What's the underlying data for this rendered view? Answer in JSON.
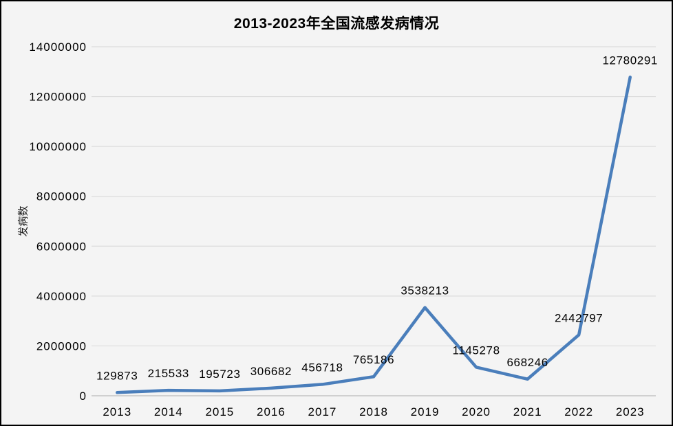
{
  "chart_data": {
    "type": "line",
    "title": "2013-2023年全国流感发病情况",
    "ylabel": "发病数",
    "xlabel": "",
    "categories": [
      "2013",
      "2014",
      "2015",
      "2016",
      "2017",
      "2018",
      "2019",
      "2020",
      "2021",
      "2022",
      "2023"
    ],
    "series": [
      {
        "name": "发病数",
        "values": [
          129873,
          215533,
          195723,
          306682,
          456718,
          765186,
          3538213,
          1145278,
          668246,
          2442797,
          12780291
        ]
      }
    ],
    "data_labels": [
      "129873",
      "215533",
      "195723",
      "306682",
      "456718",
      "765186",
      "3538213",
      "1145278",
      "668246",
      "2442797",
      "12780291"
    ],
    "ylim": [
      0,
      14000000
    ],
    "ytick_step": 2000000,
    "ytick_labels": [
      "0",
      "2000000",
      "4000000",
      "6000000",
      "8000000",
      "10000000",
      "12000000",
      "14000000"
    ],
    "grid": true,
    "legend": "none",
    "colors": {
      "line": "#4a7ebb",
      "background": "#f4f4f4",
      "gridline": "#dcdcdc",
      "axis_line": "#c4c4c4",
      "text": "#000000",
      "border": "#000000"
    }
  }
}
